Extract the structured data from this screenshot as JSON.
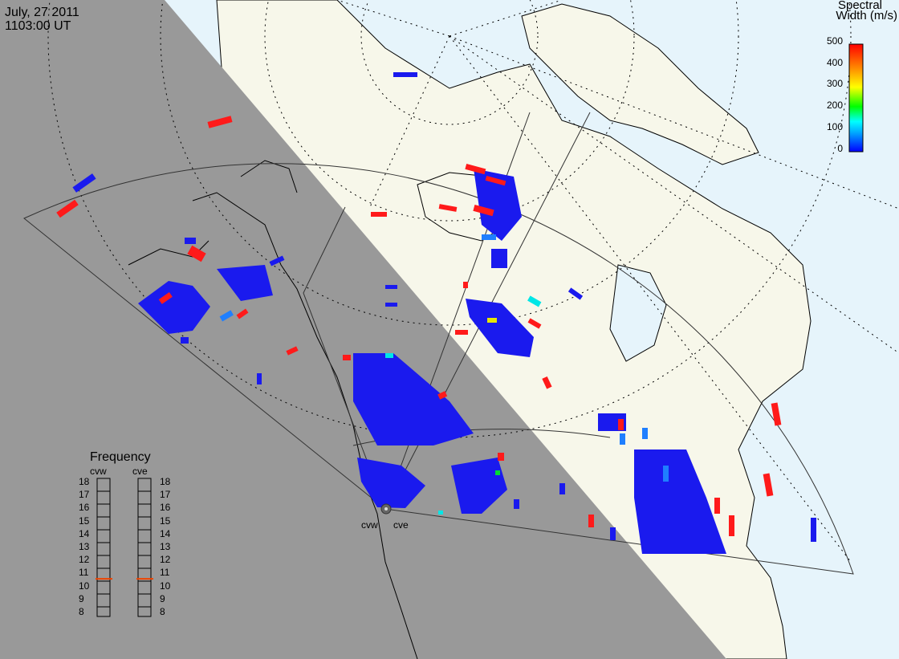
{
  "header": {
    "date": "July, 27 2011",
    "time": "1103:00 UT"
  },
  "colorbar": {
    "title_line1": "Spectral",
    "title_line2": "Width (m/s)",
    "ticks": [
      "500",
      "400",
      "300",
      "200",
      "100",
      "0"
    ],
    "min": 0,
    "max": 500,
    "colors": [
      "#0000ff",
      "#00aaff",
      "#00ffff",
      "#00ff00",
      "#ffff00",
      "#ff8800",
      "#ff0000"
    ]
  },
  "frequency_panel": {
    "title": "Frequency",
    "radars": [
      {
        "code": "cvw",
        "value_mhz": 10.8
      },
      {
        "code": "cve",
        "value_mhz": 10.8
      }
    ],
    "scale": [
      "18",
      "17",
      "16",
      "15",
      "14",
      "13",
      "12",
      "11",
      "10",
      "9",
      "8"
    ]
  },
  "site_labels": [
    "cvw",
    "cve"
  ],
  "map_colors": {
    "night": "#999999",
    "land_day": "#f7f7ea",
    "ocean_day": "#e6f4fb",
    "scatter_low": "#1a1aee",
    "scatter_high": "#ff1a1a"
  }
}
